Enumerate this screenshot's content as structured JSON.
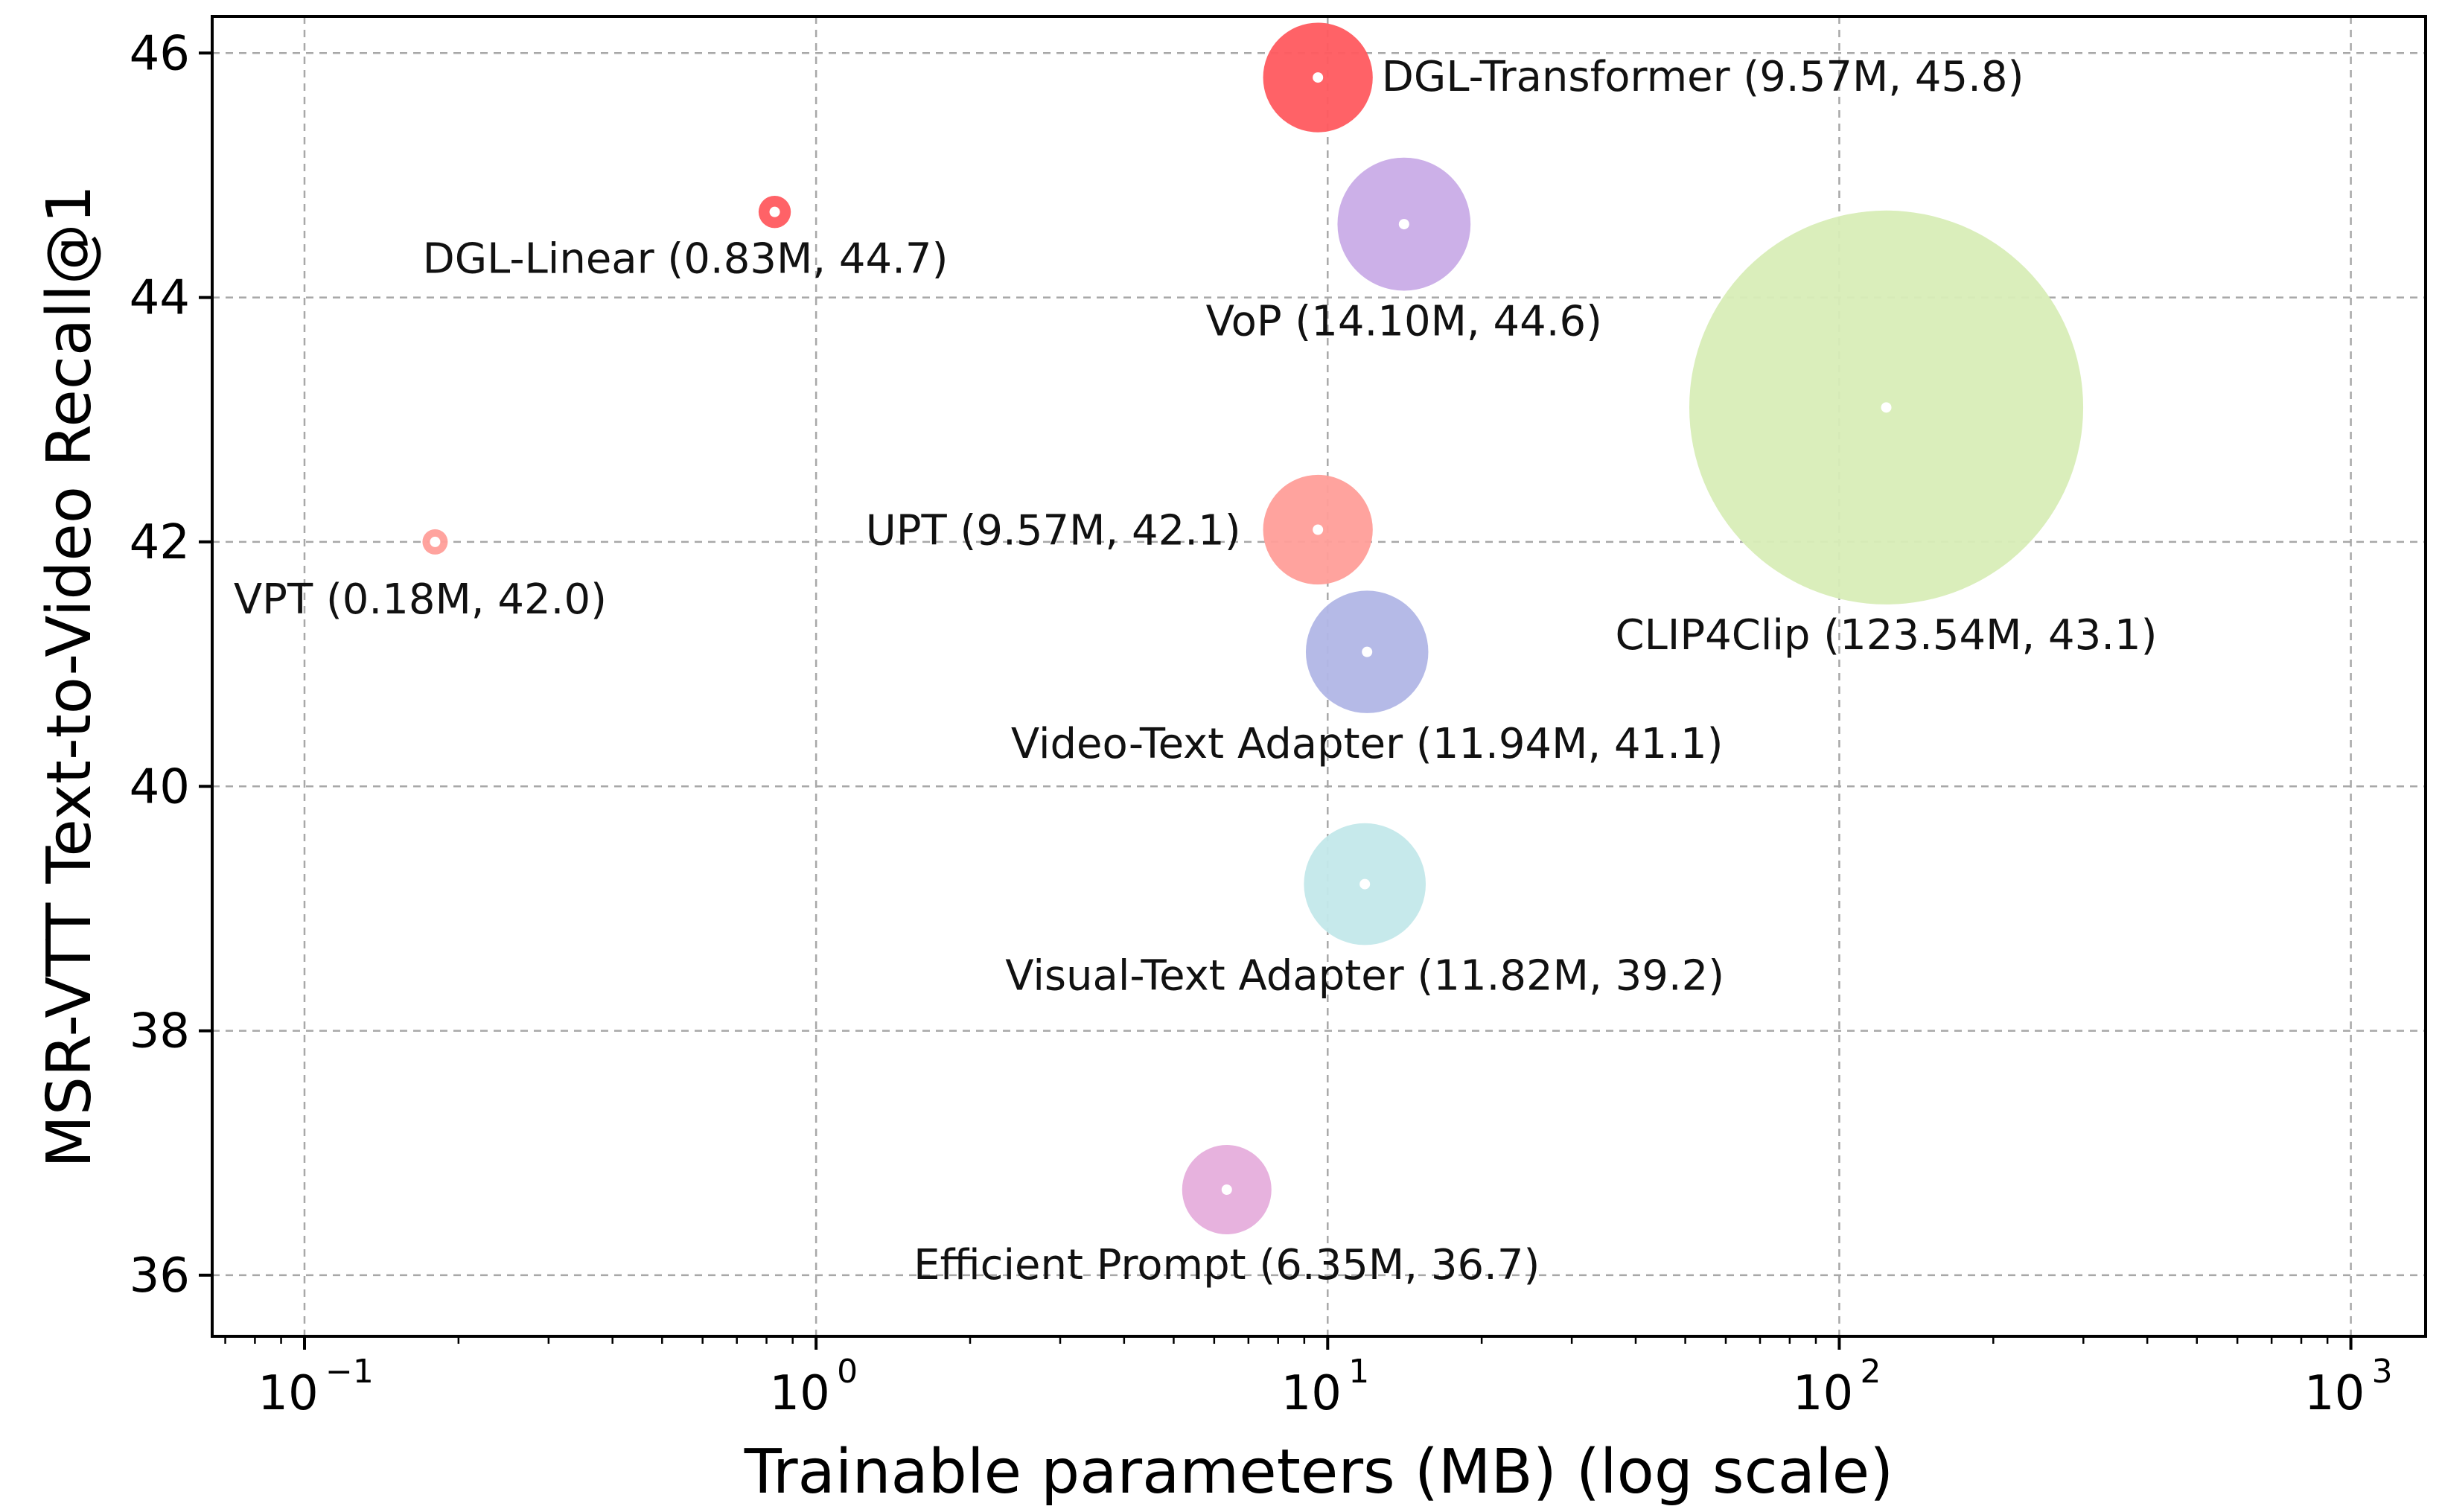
{
  "chart_data": {
    "type": "scatter",
    "variant": "bubble",
    "x_scale": "log",
    "xlabel": "Trainable parameters (MB) (log scale)",
    "ylabel": "MSR-VTT Text-to-Video Recall@1",
    "xlim": [
      0.066,
      1400
    ],
    "ylim": [
      35.5,
      46.3
    ],
    "x_ticks": [
      {
        "value": 0.1,
        "base": "10",
        "exp": "−1"
      },
      {
        "value": 1,
        "base": "10",
        "exp": "0"
      },
      {
        "value": 10,
        "base": "10",
        "exp": "1"
      },
      {
        "value": 100,
        "base": "10",
        "exp": "2"
      },
      {
        "value": 1000,
        "base": "10",
        "exp": "3"
      }
    ],
    "y_ticks": [
      {
        "value": 36,
        "label": "36"
      },
      {
        "value": 38,
        "label": "38"
      },
      {
        "value": 40,
        "label": "40"
      },
      {
        "value": 42,
        "label": "42"
      },
      {
        "value": 44,
        "label": "44"
      },
      {
        "value": 46,
        "label": "46"
      }
    ],
    "grid": true,
    "legend": "none",
    "points": [
      {
        "label": "DGL-Transformer (9.57M, 45.8)",
        "x": 9.57,
        "y": 45.8,
        "size": 9.57,
        "color": "#ff5a5f",
        "opacity": 0.95,
        "label_pos": "right"
      },
      {
        "label": "DGL-Linear (0.83M, 44.7)",
        "x": 0.83,
        "y": 44.7,
        "size": 0.83,
        "color": "#ff5a5f",
        "opacity": 0.95,
        "label_pos": "below-left"
      },
      {
        "label": "VoP (14.10M, 44.6)",
        "x": 14.1,
        "y": 44.6,
        "size": 14.1,
        "color": "#c6a7e6",
        "opacity": 0.9,
        "label_pos": "below"
      },
      {
        "label": "CLIP4Clip (123.54M, 43.1)",
        "x": 123.54,
        "y": 43.1,
        "size": 123.54,
        "color": "#d8edb7",
        "opacity": 0.95,
        "label_pos": "below"
      },
      {
        "label": "UPT (9.57M, 42.1)",
        "x": 9.57,
        "y": 42.1,
        "size": 9.57,
        "color": "#ff9e99",
        "opacity": 0.95,
        "label_pos": "left"
      },
      {
        "label": "VPT (0.18M, 42.0)",
        "x": 0.18,
        "y": 42.0,
        "size": 0.18,
        "color": "#ff9e99",
        "opacity": 0.95,
        "label_pos": "below-left"
      },
      {
        "label": "Video-Text Adapter (11.94M, 41.1)",
        "x": 11.94,
        "y": 41.1,
        "size": 11.94,
        "color": "#b1b6e6",
        "opacity": 0.95,
        "label_pos": "below"
      },
      {
        "label": "Visual-Text Adapter (11.82M, 39.2)",
        "x": 11.82,
        "y": 39.2,
        "size": 11.82,
        "color": "#c3e8ea",
        "opacity": 0.95,
        "label_pos": "below"
      },
      {
        "label": "Efficient Prompt (6.35M, 36.7)",
        "x": 6.35,
        "y": 36.7,
        "size": 6.35,
        "color": "#e6aedc",
        "opacity": 0.95,
        "label_pos": "below"
      }
    ]
  }
}
